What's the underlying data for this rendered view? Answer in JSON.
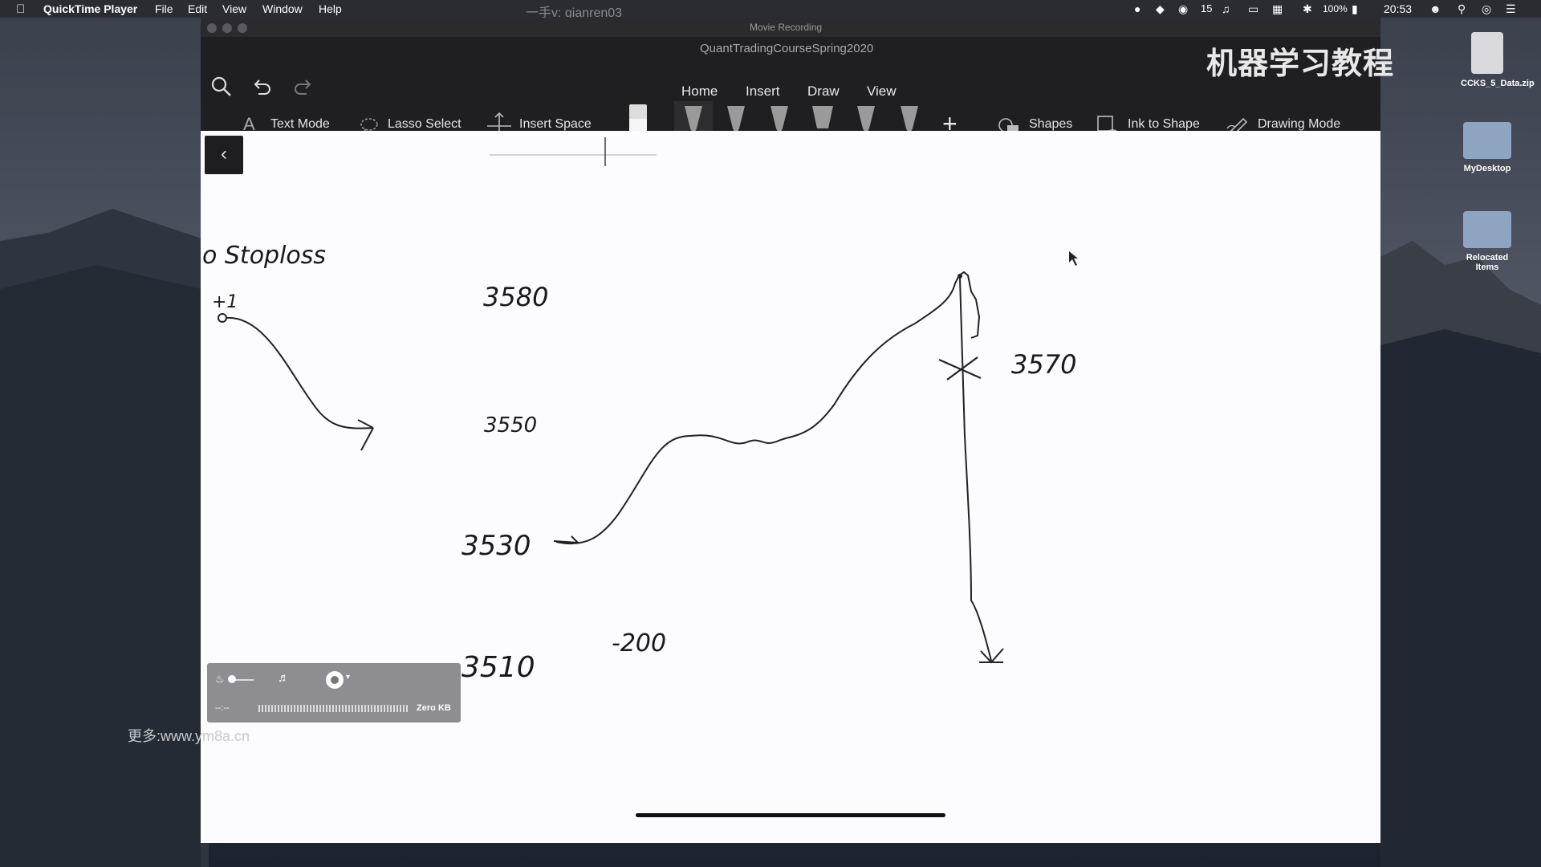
{
  "menubar": {
    "app_name": "QuickTime Player",
    "items": [
      "File",
      "Edit",
      "View",
      "Window",
      "Help"
    ],
    "overlay_text": "一手v: qianren03",
    "wechat_count": "15",
    "battery": "100%",
    "time": "20:53"
  },
  "window": {
    "title": "Movie Recording",
    "doc_title": "QuantTradingCourseSpring2020",
    "tabs": [
      "Home",
      "Insert",
      "Draw",
      "View"
    ],
    "tools": {
      "text_mode": "Text Mode",
      "lasso_select": "Lasso Select",
      "insert_space": "Insert Space",
      "shapes": "Shapes",
      "ink_to_shape": "Ink to Shape",
      "drawing_mode": "Drawing Mode"
    }
  },
  "canvas": {
    "stoploss_text": "Stoploss",
    "plus_one": "+1",
    "price_3580": "3580",
    "price_3550": "3550",
    "price_3530": "3530",
    "price_3510": "3510",
    "minus_200": "-200",
    "price_3570": "3570"
  },
  "recorder": {
    "time": "--:--",
    "size": "Zero KB"
  },
  "watermark": {
    "url": "更多:www.ym8a.cn",
    "chinese_title": "机器学习教程"
  },
  "desktop": {
    "icons": [
      "CCKS_5_Data.zip",
      "MyDesktop",
      "Relocated Items"
    ]
  }
}
